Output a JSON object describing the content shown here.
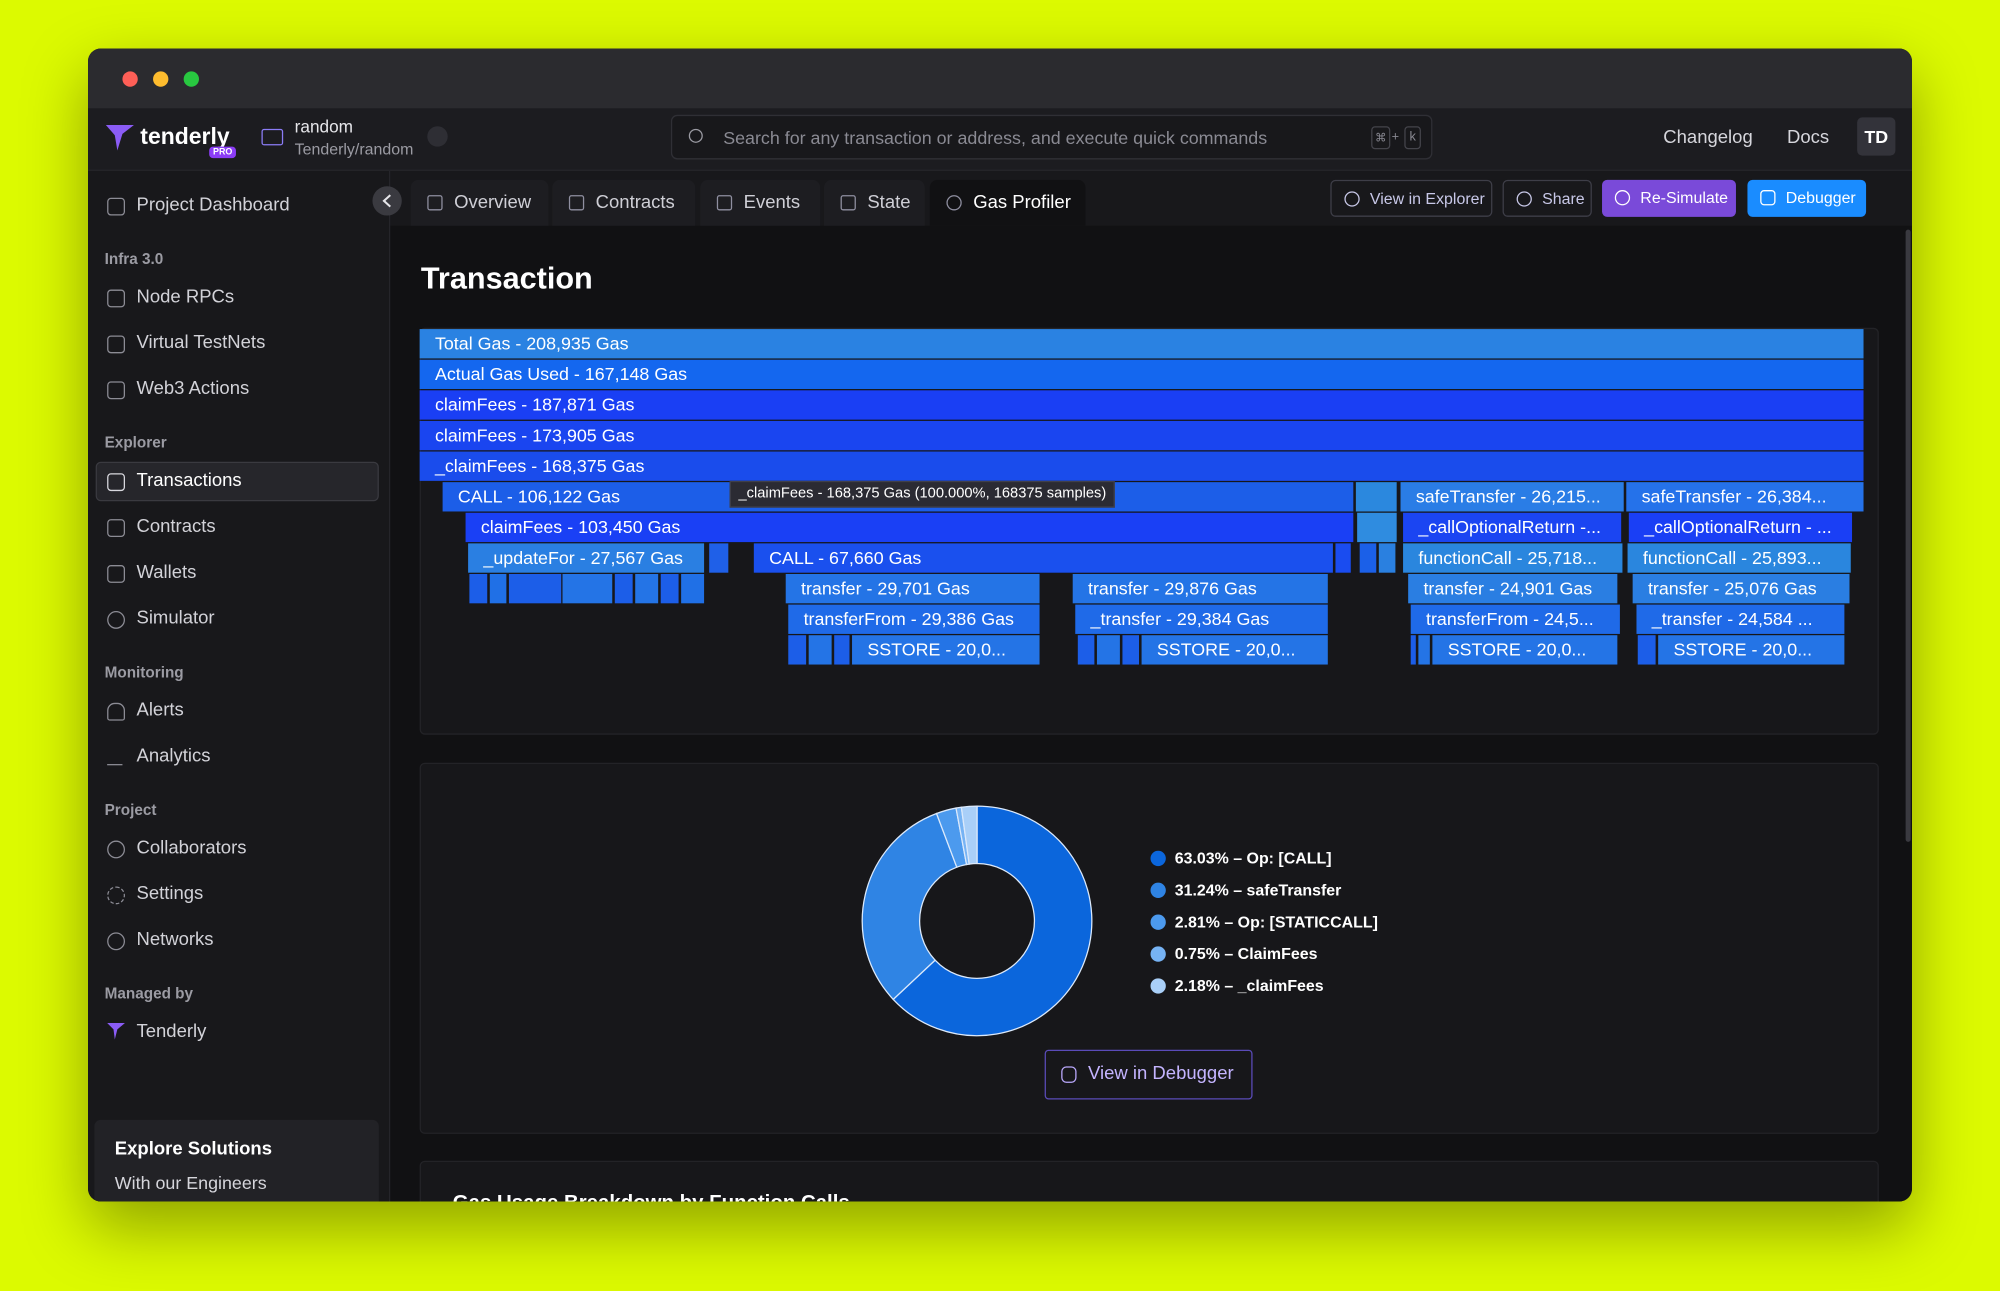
{
  "header": {
    "logo": "tenderly",
    "badge": "PRO",
    "project_name": "random",
    "project_path": "Tenderly/random",
    "search_placeholder": "Search for any transaction or address, and execute quick commands",
    "shortcut": [
      "⌘",
      "+",
      "k"
    ],
    "links": [
      "Changelog",
      "Docs"
    ],
    "avatar": "TD"
  },
  "sidebar": {
    "top_item": "Project Dashboard",
    "sections": [
      {
        "title": "Infra 3.0",
        "items": [
          "Node RPCs",
          "Virtual TestNets",
          "Web3 Actions"
        ]
      },
      {
        "title": "Explorer",
        "items": [
          "Transactions",
          "Contracts",
          "Wallets",
          "Simulator"
        ]
      },
      {
        "title": "Monitoring",
        "items": [
          "Alerts",
          "Analytics"
        ]
      },
      {
        "title": "Project",
        "items": [
          "Collaborators",
          "Settings",
          "Networks"
        ]
      },
      {
        "title": "Managed by",
        "items": [
          "Tenderly"
        ]
      }
    ],
    "card": {
      "title": "Explore Solutions",
      "subtitle": "With our Engineers"
    }
  },
  "tabs": [
    "Overview",
    "Contracts",
    "Events",
    "State",
    "Gas Profiler"
  ],
  "actions": [
    "View in Explorer",
    "Share",
    "Re-Simulate",
    "Debugger"
  ],
  "page_title": "Transaction",
  "flame_graph": {
    "blocks": [
      "Total Gas - 208,935 Gas",
      "Actual Gas Used - 167,148 Gas",
      "claimFees - 187,871 Gas",
      "claimFees - 173,905 Gas",
      "_claimFees - 168,375 Gas",
      "CALL - 106,122 Gas",
      "safeTransfer - 26,215...",
      "safeTransfer - 26,384...",
      "claimFees - 103,450 Gas",
      "_callOptionalReturn -...",
      "_callOptionalReturn - ...",
      "_updateFor - 27,567 Gas",
      "CALL - 67,660 Gas",
      "functionCall - 25,718...",
      "functionCall - 25,893...",
      "transfer - 29,701 Gas",
      "transfer - 29,876 Gas",
      "transfer - 24,901 Gas",
      "transfer - 25,076 Gas",
      "transferFrom - 29,386 Gas",
      "_transfer - 29,384 Gas",
      "transferFrom - 24,5...",
      "_transfer - 24,584 ...",
      "SSTORE - 20,0...",
      "SSTORE - 20,0...",
      "SSTORE - 20,0...",
      "SSTORE - 20,0..."
    ],
    "tooltip": "_claimFees - 168,375 Gas (100.000%, 168375 samples)"
  },
  "gas_breakdown": {
    "type": "pie",
    "values": [
      63.03,
      31.24,
      2.81,
      0.75,
      2.18
    ],
    "labels": [
      "63.03% – Op: [CALL]",
      "31.24% – safeTransfer",
      "2.81% – Op: [STATICCALL]",
      "0.75% – ClaimFees",
      "2.18% – _claimFees"
    ],
    "colors": [
      "#0b66dc",
      "#2f84e4",
      "#4c9aee",
      "#76b3f4",
      "#a9cff8"
    ]
  },
  "debugger_button": "View in Debugger",
  "next_section_title": "Gas Usage Breakdown by Function Calls"
}
